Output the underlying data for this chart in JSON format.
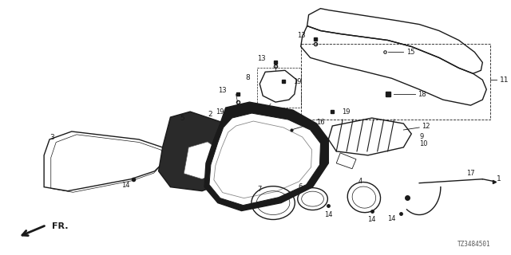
{
  "bg_color": "#ffffff",
  "line_color": "#1a1a1a",
  "part_number": "TZ3484501",
  "fig_width": 6.4,
  "fig_height": 3.2
}
